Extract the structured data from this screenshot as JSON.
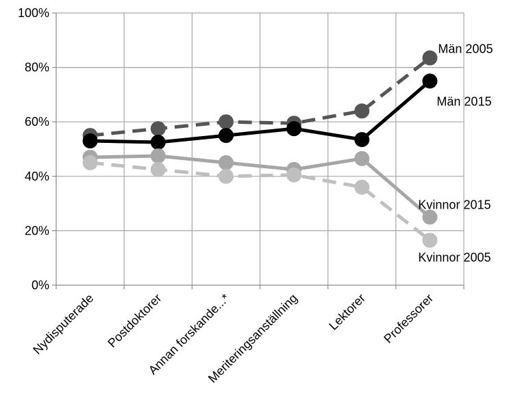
{
  "chart_data": {
    "type": "line",
    "categories": [
      "Nydisputerade",
      "Postdoktorer",
      "Annan forskande...*",
      "Meriteringsanställning",
      "Lektorer",
      "Professorer"
    ],
    "ylim": [
      0,
      100
    ],
    "yticks": [
      0,
      20,
      40,
      60,
      80,
      100
    ],
    "ytick_labels": [
      "0%",
      "20%",
      "40%",
      "60%",
      "80%",
      "100%"
    ],
    "grid": true,
    "series": [
      {
        "name": "Män 2005",
        "values": [
          55,
          57.5,
          60,
          59.5,
          64,
          83.5
        ],
        "color": "#555555",
        "dash": true,
        "marker": true
      },
      {
        "name": "Män 2015",
        "values": [
          53,
          52.5,
          55,
          57.5,
          53.5,
          75
        ],
        "color": "#000000",
        "dash": false,
        "marker": true
      },
      {
        "name": "Kvinnor 2015",
        "values": [
          47,
          47.5,
          45,
          42.5,
          46.5,
          25
        ],
        "color": "#a6a6a6",
        "dash": false,
        "marker": true
      },
      {
        "name": "Kvinnor 2005",
        "values": [
          45,
          42.5,
          40,
          40.5,
          36,
          16.5
        ],
        "color": "#bfbfbf",
        "dash": true,
        "marker": true
      }
    ]
  }
}
